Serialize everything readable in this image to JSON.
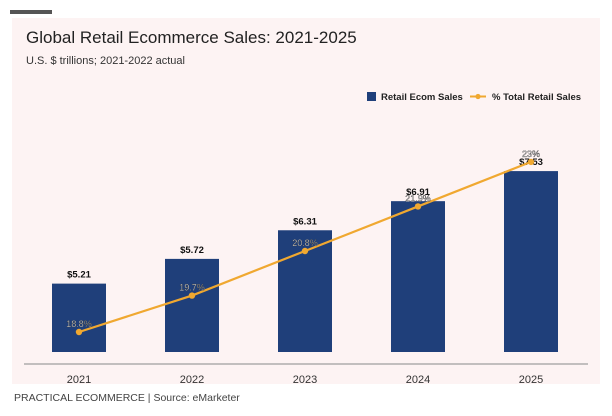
{
  "header": {
    "title": "Global Retail Ecommerce Sales: 2021-2025",
    "subtitle": "U.S. $ trillions; 2021-2022 actual"
  },
  "footer": {
    "text": "PRACTICAL ECOMMERCE | Source: eMarketer"
  },
  "colors": {
    "bar": "#1f3f7a",
    "line": "#f0a830",
    "panel_background": "#fdf3f3"
  },
  "chart_data": {
    "type": "bar",
    "title": "Global Retail Ecommerce Sales: 2021-2025",
    "subtitle": "U.S. $ trillions; 2021-2022 actual",
    "categories": [
      "2021",
      "2022",
      "2023",
      "2024",
      "2025"
    ],
    "series": [
      {
        "name": "Retail Ecom Sales",
        "type": "bar",
        "values": [
          5.21,
          5.72,
          6.31,
          6.91,
          7.53
        ],
        "labels": [
          "$5.21",
          "$5.72",
          "$6.31",
          "$6.91",
          "$7.53"
        ]
      },
      {
        "name": "% Total Retail Sales",
        "type": "line",
        "values": [
          18.8,
          19.7,
          20.8,
          21.9,
          23.0
        ],
        "labels": [
          "18.8%",
          "19.7%",
          "20.8%",
          "21.9%",
          "23%"
        ]
      }
    ],
    "legend": {
      "position": "top-right",
      "items": [
        "Retail Ecom Sales",
        "% Total Retail Sales"
      ]
    },
    "grid": false
  }
}
